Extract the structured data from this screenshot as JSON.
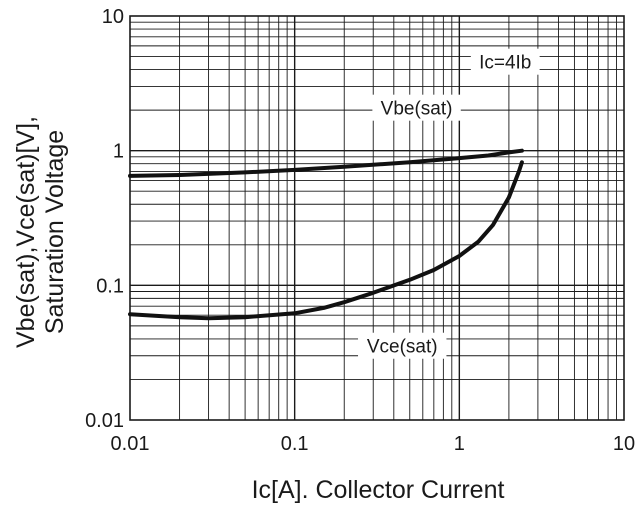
{
  "chart_data": {
    "type": "line",
    "title": "",
    "xlabel": "Ic[A]. Collector Current",
    "ylabel_lines": [
      "Vbe(sat),Vce(sat)[V],",
      "Saturation Voltage"
    ],
    "x_scale": "log",
    "y_scale": "log",
    "xlim": [
      0.01,
      10
    ],
    "ylim": [
      0.01,
      10
    ],
    "x_ticks": [
      0.01,
      0.1,
      1,
      10
    ],
    "x_tick_labels": [
      "0.01",
      "0.1",
      "1",
      "10"
    ],
    "y_ticks": [
      0.01,
      0.1,
      1,
      10
    ],
    "y_tick_labels": [
      "0.01",
      "0.1",
      "1",
      "10"
    ],
    "grid": true,
    "condition_label": "Ic=4Ib",
    "series": [
      {
        "name": "Vbe(sat)",
        "x": [
          0.01,
          0.02,
          0.05,
          0.1,
          0.2,
          0.5,
          1,
          1.5,
          2,
          2.4
        ],
        "y": [
          0.65,
          0.66,
          0.69,
          0.72,
          0.76,
          0.82,
          0.88,
          0.92,
          0.97,
          1.0
        ]
      },
      {
        "name": "Vce(sat)",
        "x": [
          0.01,
          0.02,
          0.03,
          0.05,
          0.1,
          0.15,
          0.2,
          0.3,
          0.5,
          0.7,
          1.0,
          1.3,
          1.6,
          2.0,
          2.3,
          2.4
        ],
        "y": [
          0.061,
          0.058,
          0.057,
          0.058,
          0.062,
          0.068,
          0.075,
          0.088,
          0.11,
          0.13,
          0.165,
          0.21,
          0.28,
          0.45,
          0.7,
          0.82
        ]
      }
    ]
  }
}
